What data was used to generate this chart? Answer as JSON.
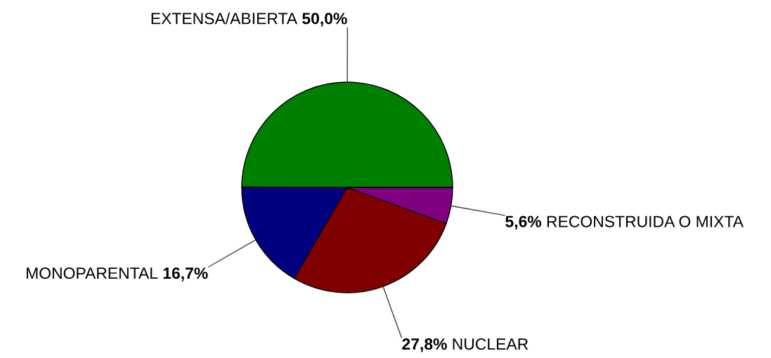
{
  "chart_data": {
    "type": "pie",
    "categories": [
      "EXTENSA/ABIERTA",
      "MONOPARENTAL",
      "NUCLEAR",
      "RECONSTRUIDA O MIXTA"
    ],
    "values": [
      50.0,
      16.7,
      27.8,
      5.6
    ],
    "colors": [
      "#008000",
      "#000080",
      "#800000",
      "#800080"
    ],
    "value_labels": [
      "50,0%",
      "16,7%",
      "27,8%",
      "5,6%"
    ]
  }
}
